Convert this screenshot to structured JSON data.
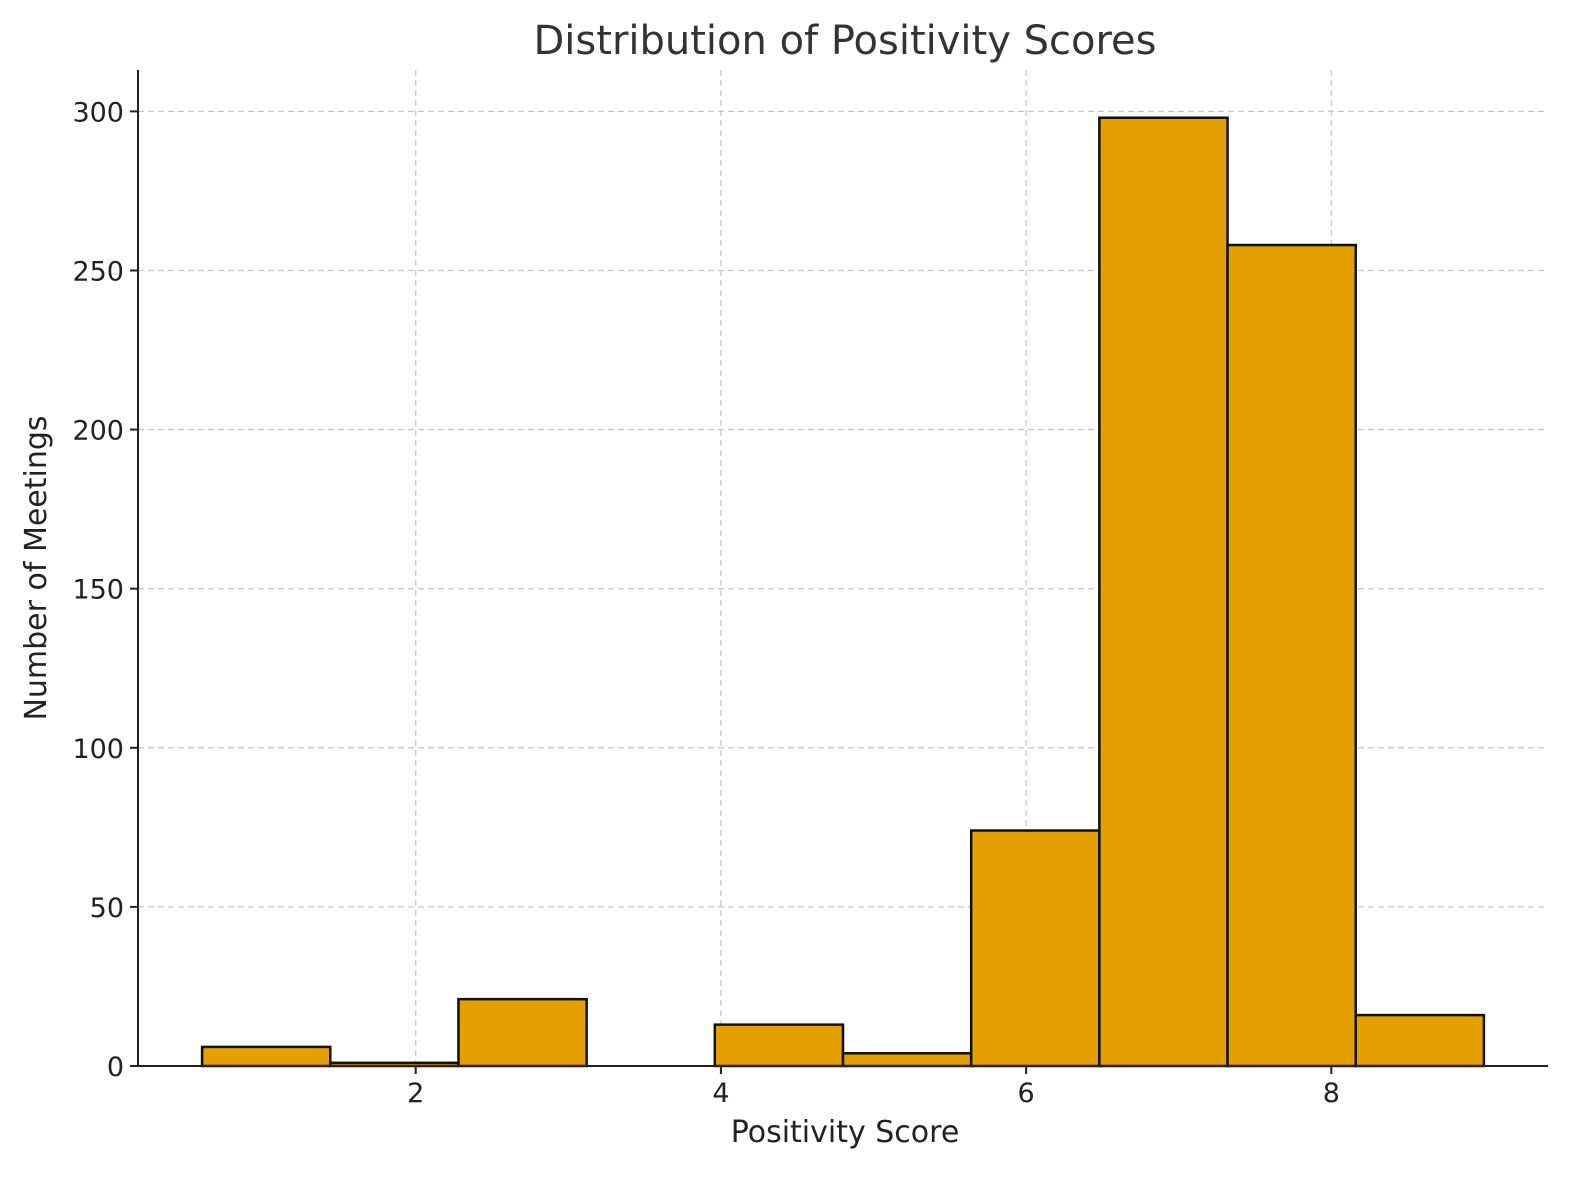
{
  "chart_data": {
    "type": "bar",
    "title": "Distribution of Positivity Scores",
    "xlabel": "Positivity Score",
    "ylabel": "Number of Meetings",
    "bin_edges": [
      0.6,
      1.44,
      2.28,
      3.12,
      3.96,
      4.8,
      5.64,
      6.48,
      7.32,
      8.16,
      9.0
    ],
    "values": [
      6,
      1,
      21,
      0,
      13,
      4,
      74,
      298,
      258,
      16
    ],
    "xlim": [
      0.18,
      9.42
    ],
    "ylim": [
      0,
      313
    ],
    "xticks": [
      2,
      4,
      6,
      8
    ],
    "yticks": [
      0,
      50,
      100,
      150,
      200,
      250,
      300
    ],
    "grid": true,
    "bar_color": "#E3A000",
    "edge_color": "#111111"
  }
}
